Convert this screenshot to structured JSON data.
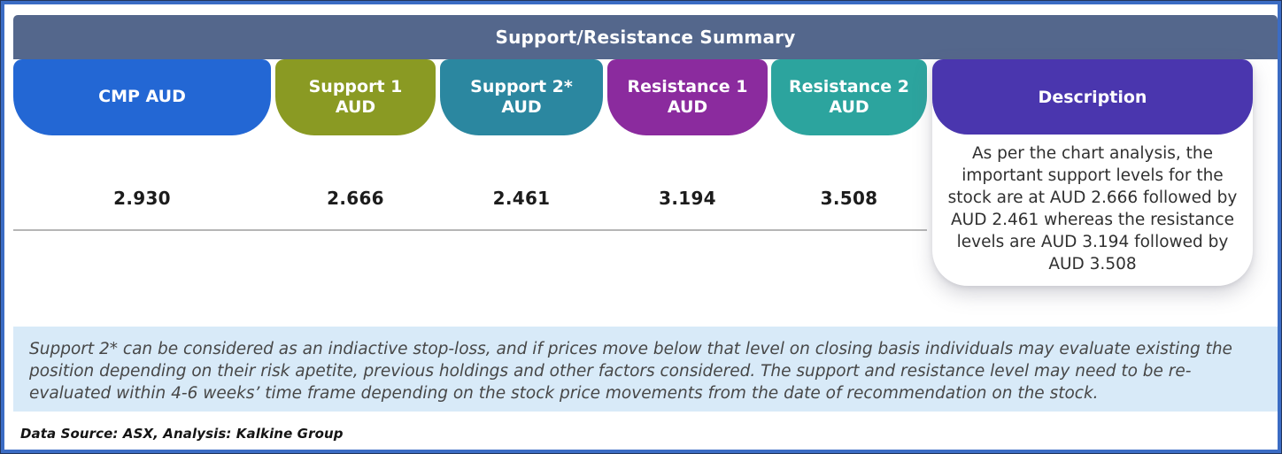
{
  "header": {
    "title": "Support/Resistance Summary"
  },
  "columns": [
    {
      "label": "CMP AUD",
      "value": "2.930",
      "color": "#2367d4"
    },
    {
      "label": "Support 1\nAUD",
      "value": "2.666",
      "color": "#8a9a23"
    },
    {
      "label": "Support 2*\nAUD",
      "value": "2.461",
      "color": "#2b87a0"
    },
    {
      "label": "Resistance 1\nAUD",
      "value": "3.194",
      "color": "#8b2b9e"
    },
    {
      "label": "Resistance 2\nAUD",
      "value": "3.508",
      "color": "#2ca49e"
    }
  ],
  "description": {
    "label": "Description",
    "color": "#4a36ae",
    "text": "As per the chart analysis, the important support levels for the stock are at AUD 2.666 followed by AUD 2.461 whereas the resistance levels are AUD 3.194 followed by AUD 3.508"
  },
  "footnote": "Support 2* can be considered as an indiactive stop-loss, and if prices move below that level on closing basis individuals may evaluate existing the position depending on their risk apetite, previous holdings and other factors considered. The support and resistance level may need to be re-evaluated within 4-6 weeks’ time frame depending on the stock price movements from  the date of recommendation on the stock.",
  "source": "Data Source: ASX, Analysis: Kalkine Group",
  "colors": {
    "frame_border": "#3b6cc4",
    "title_bar": "#54678c",
    "footnote_bg": "#d8eaf8",
    "divider": "#b6b6b6"
  }
}
